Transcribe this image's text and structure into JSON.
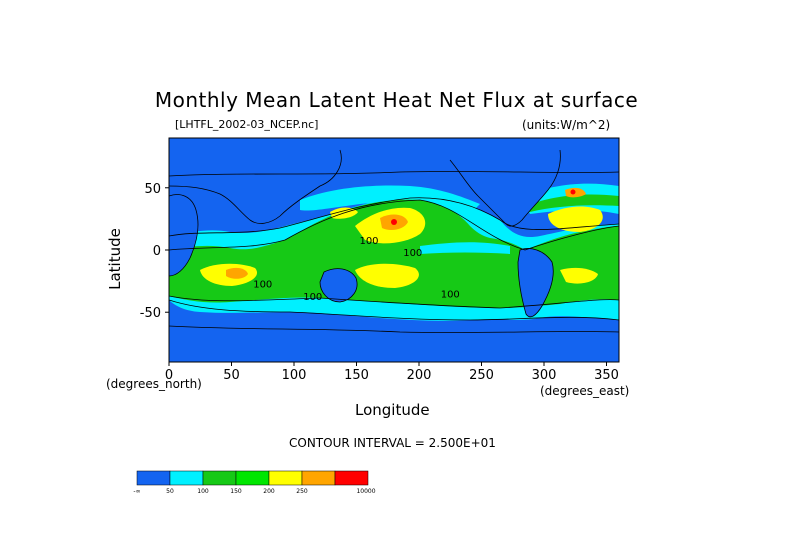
{
  "chart_data": {
    "type": "heatmap",
    "title": "Monthly Mean Latent Heat Net Flux at surface",
    "file_label": "[LHTFL_2002-03_NCEP.nc]",
    "units_label": "(units:W/m^2)",
    "xlabel": "Longitude",
    "ylabel": "Latitude",
    "x_unit_label": "(degrees_east)",
    "y_unit_label": "(degrees_north)",
    "xlim": [
      0,
      360
    ],
    "ylim": [
      -90,
      90
    ],
    "x_ticks": [
      0,
      50,
      100,
      150,
      200,
      250,
      300,
      350
    ],
    "y_ticks": [
      50,
      0,
      -50
    ],
    "contour_interval_label": "CONTOUR INTERVAL = 2.500E+01",
    "contour_labels": [
      {
        "text": "100",
        "lon": 160,
        "lat": 5
      },
      {
        "text": "100",
        "lon": 195,
        "lat": -5
      },
      {
        "text": "100",
        "lon": 225,
        "lat": -38
      },
      {
        "text": "100",
        "lon": 75,
        "lat": -30
      },
      {
        "text": "100",
        "lon": 115,
        "lat": -40
      }
    ],
    "colorbar": {
      "colors": [
        "#0055ff",
        "#00ffff",
        "#00d700",
        "#00ff00",
        "#ffff00",
        "#ffaa00",
        "#ff0000"
      ],
      "colors_used": [
        "#1464f0",
        "#00f0ff",
        "#16c916",
        "#00e600",
        "#ffff00",
        "#ffa500",
        "#ff0000"
      ],
      "tick_labels": [
        "-∞",
        "50",
        "100",
        "150",
        "200",
        "250",
        "10000"
      ]
    },
    "field_colors": {
      "bin_0_50": "#1464f0",
      "bin_50_100": "#00f0ff",
      "bin_100_150": "#16c916",
      "bin_150_200": "#ffff00",
      "bin_200_250": "#ffa500",
      "bin_250_plus": "#ff0000",
      "land": "#1464f0"
    }
  }
}
